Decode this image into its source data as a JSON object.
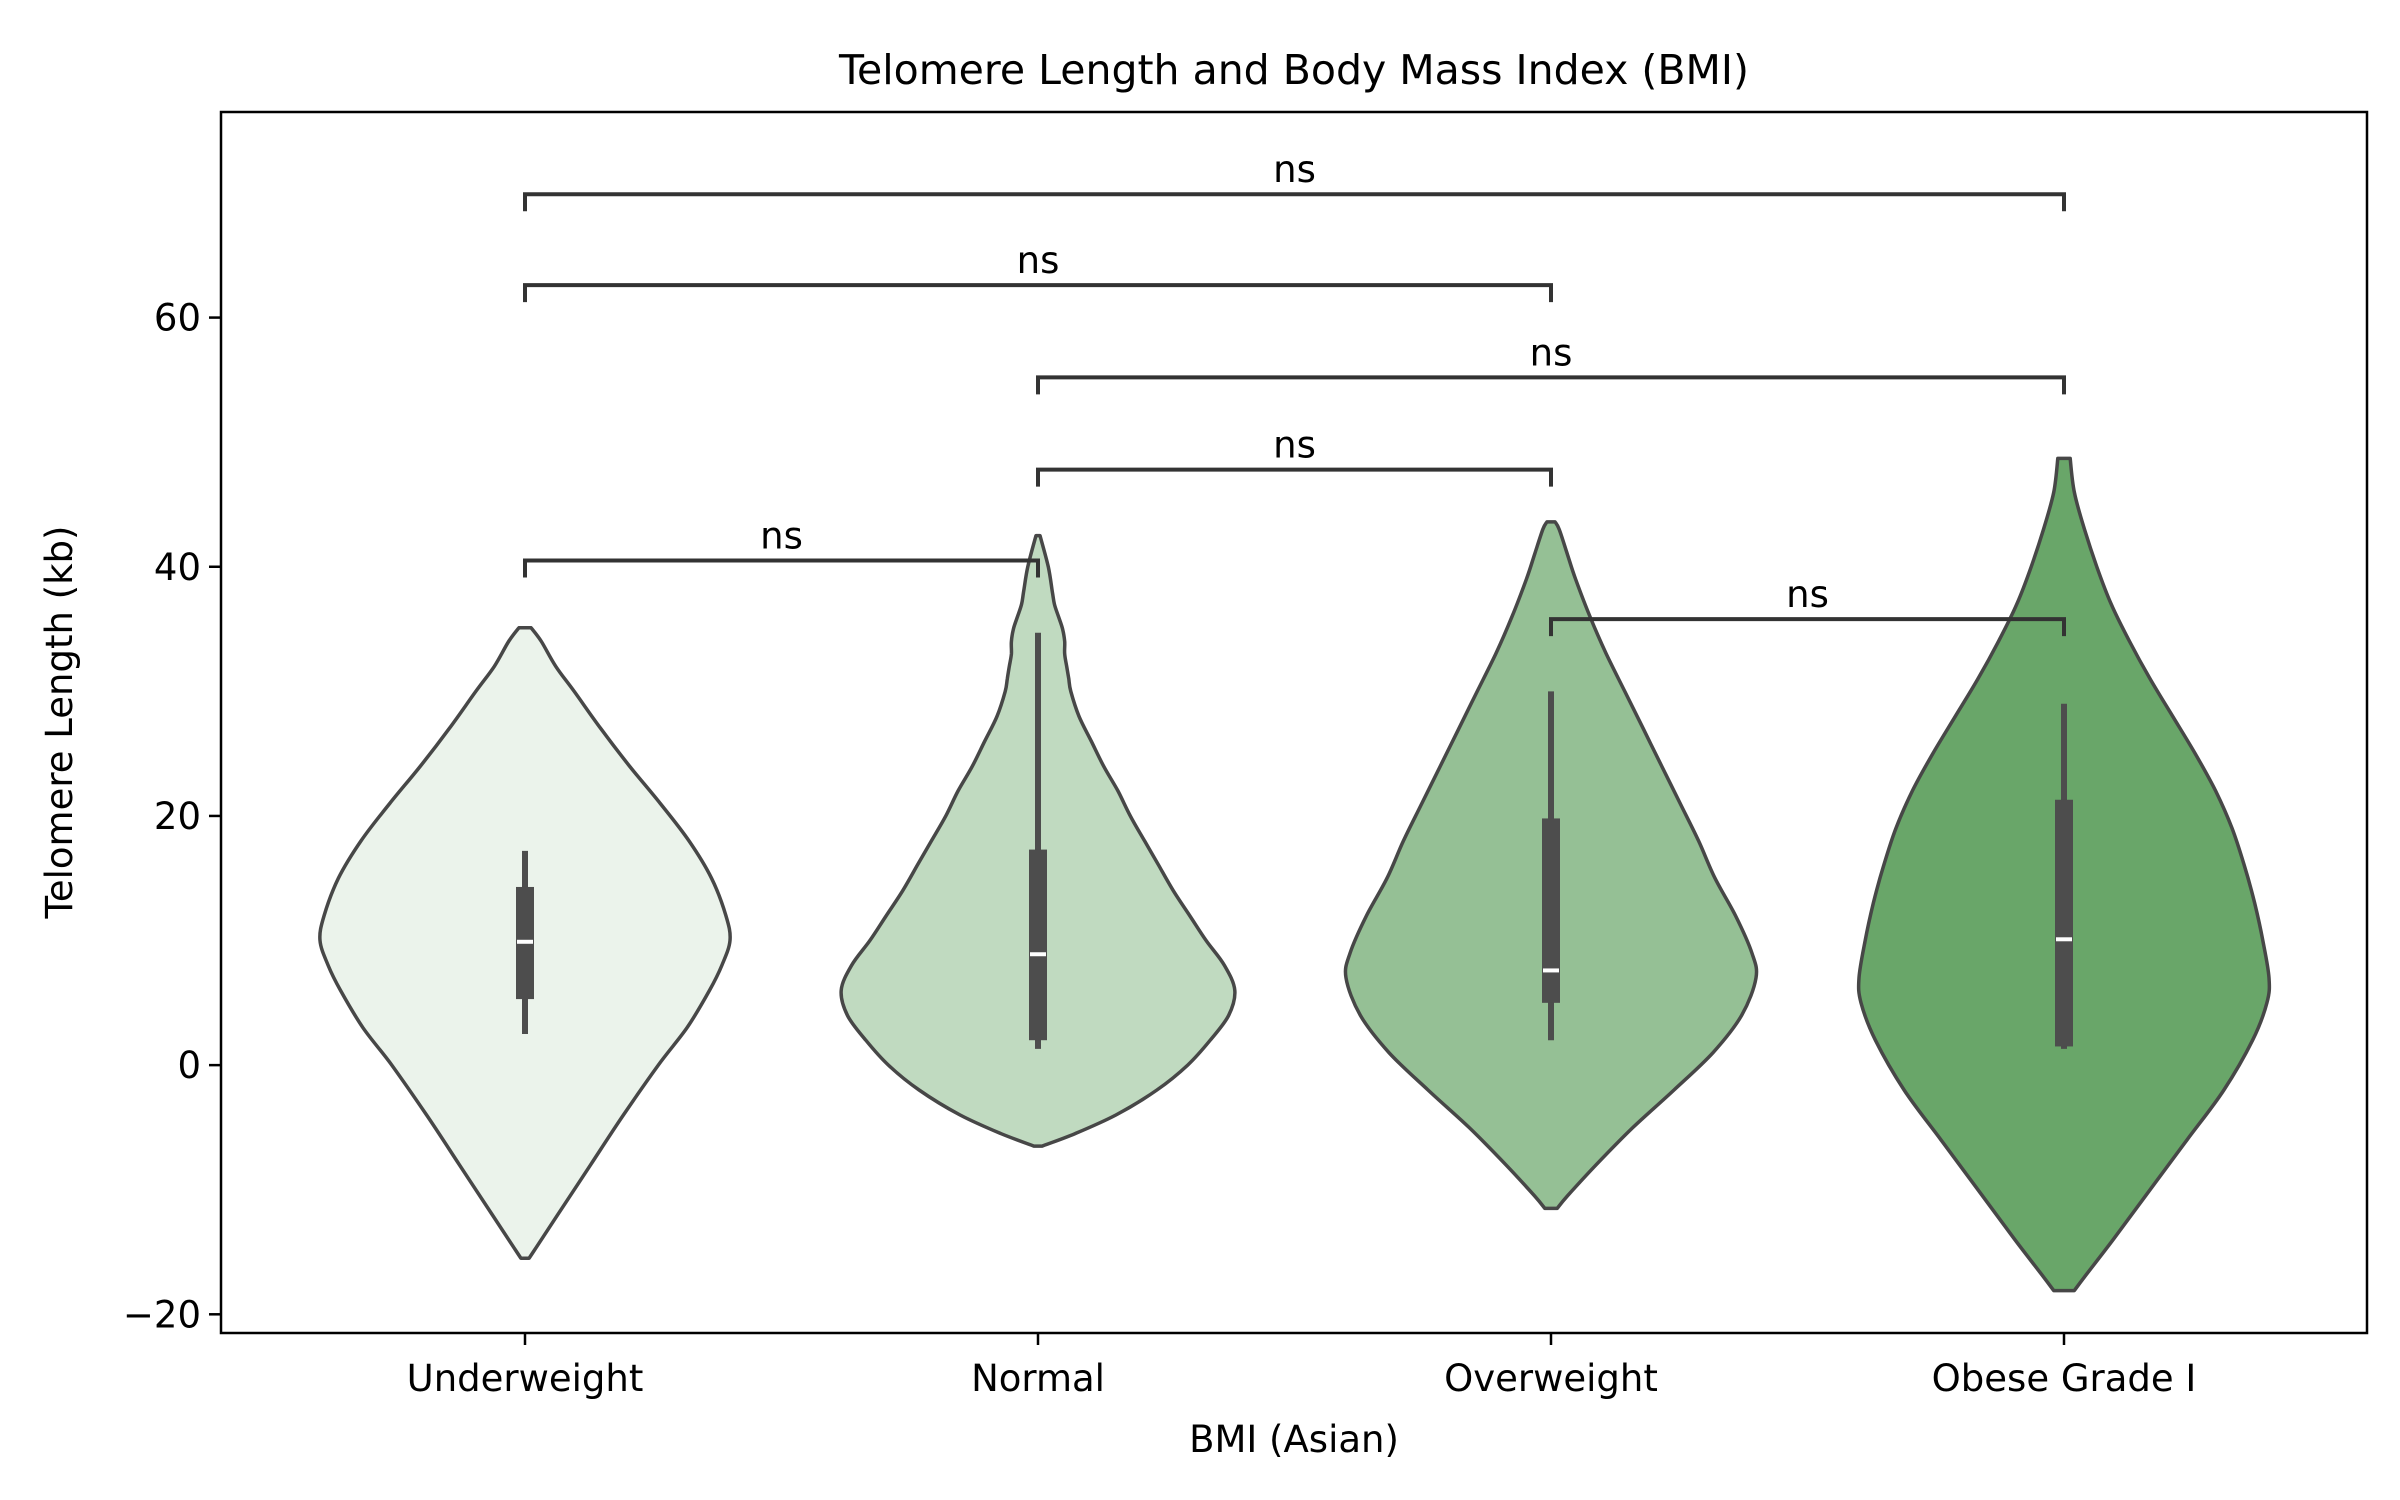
{
  "chart_data": {
    "type": "violin",
    "title": "Telomere Length and Body Mass Index (BMI)",
    "xlabel": "BMI (Asian)",
    "ylabel": "Telomere Length (kb)",
    "ylim": [
      -21.5,
      76.5
    ],
    "yticks": [
      -20,
      0,
      20,
      40,
      60
    ],
    "ytick_labels": [
      "−20",
      "0",
      "20",
      "40",
      "60"
    ],
    "categories": [
      "Underweight",
      "Normal",
      "Overweight",
      "Obese Grade I"
    ],
    "colors": [
      "#ebf3eb",
      "#c0dac0",
      "#95c095",
      "#69a669"
    ],
    "edge_color": "#474747",
    "box_color": "#4d4d4d",
    "median_color": "#ffffff",
    "violins": [
      {
        "category": "Underweight",
        "min": -15.5,
        "max": 35.1,
        "profile": [
          [
            -15.5,
            0.02
          ],
          [
            -14.5,
            0.06
          ],
          [
            -12,
            0.16
          ],
          [
            -8,
            0.32
          ],
          [
            -4,
            0.48
          ],
          [
            0,
            0.65
          ],
          [
            3,
            0.79
          ],
          [
            6,
            0.9
          ],
          [
            8,
            0.96
          ],
          [
            10,
            1.0
          ],
          [
            12,
            0.98
          ],
          [
            15,
            0.91
          ],
          [
            18,
            0.8
          ],
          [
            21,
            0.66
          ],
          [
            24,
            0.51
          ],
          [
            27,
            0.37
          ],
          [
            30,
            0.24
          ],
          [
            32,
            0.15
          ],
          [
            34,
            0.08
          ],
          [
            35.1,
            0.03
          ]
        ],
        "whisker": [
          2.5,
          17.2
        ],
        "q1": 5.3,
        "q3": 14.3,
        "median": 9.9
      },
      {
        "category": "Normal",
        "min": -6.5,
        "max": 42.5,
        "profile": [
          [
            -6.5,
            0.02
          ],
          [
            -5.5,
            0.18
          ],
          [
            -4,
            0.38
          ],
          [
            -2,
            0.58
          ],
          [
            0,
            0.73
          ],
          [
            2,
            0.84
          ],
          [
            4,
            0.93
          ],
          [
            6,
            0.96
          ],
          [
            8,
            0.91
          ],
          [
            10,
            0.82
          ],
          [
            12,
            0.74
          ],
          [
            14,
            0.66
          ],
          [
            16,
            0.59
          ],
          [
            18,
            0.52
          ],
          [
            20,
            0.45
          ],
          [
            22,
            0.39
          ],
          [
            24,
            0.32
          ],
          [
            26,
            0.26
          ],
          [
            28,
            0.2
          ],
          [
            30,
            0.16
          ],
          [
            31,
            0.15
          ],
          [
            32,
            0.14
          ],
          [
            33,
            0.13
          ],
          [
            34,
            0.13
          ],
          [
            35,
            0.12
          ],
          [
            36,
            0.1
          ],
          [
            37,
            0.08
          ],
          [
            38,
            0.07
          ],
          [
            40,
            0.05
          ],
          [
            42.5,
            0.01
          ]
        ],
        "whisker": [
          1.3,
          34.7
        ],
        "q1": 2.0,
        "q3": 17.3,
        "median": 8.9
      },
      {
        "category": "Overweight",
        "min": -11.5,
        "max": 43.6,
        "profile": [
          [
            -11.5,
            0.03
          ],
          [
            -10.5,
            0.08
          ],
          [
            -8,
            0.22
          ],
          [
            -5,
            0.4
          ],
          [
            -2,
            0.6
          ],
          [
            1,
            0.79
          ],
          [
            4,
            0.93
          ],
          [
            7,
            1.0
          ],
          [
            9,
            0.98
          ],
          [
            12,
            0.9
          ],
          [
            15,
            0.8
          ],
          [
            18,
            0.72
          ],
          [
            21,
            0.63
          ],
          [
            24,
            0.54
          ],
          [
            27,
            0.45
          ],
          [
            30,
            0.36
          ],
          [
            33,
            0.27
          ],
          [
            36,
            0.19
          ],
          [
            39,
            0.12
          ],
          [
            41,
            0.08
          ],
          [
            43,
            0.04
          ],
          [
            43.6,
            0.02
          ]
        ],
        "whisker": [
          2.0,
          30.0
        ],
        "q1": 5.0,
        "q3": 19.8,
        "median": 7.6
      },
      {
        "category": "Obese Grade I",
        "min": -18.1,
        "max": 48.7,
        "profile": [
          [
            -18.1,
            0.05
          ],
          [
            -17,
            0.1
          ],
          [
            -14,
            0.24
          ],
          [
            -10,
            0.42
          ],
          [
            -6,
            0.6
          ],
          [
            -2,
            0.78
          ],
          [
            2,
            0.92
          ],
          [
            5,
            0.99
          ],
          [
            7,
            1.0
          ],
          [
            10,
            0.97
          ],
          [
            13,
            0.93
          ],
          [
            16,
            0.88
          ],
          [
            19,
            0.82
          ],
          [
            22,
            0.74
          ],
          [
            25,
            0.64
          ],
          [
            28,
            0.53
          ],
          [
            31,
            0.42
          ],
          [
            34,
            0.32
          ],
          [
            37,
            0.23
          ],
          [
            40,
            0.16
          ],
          [
            43,
            0.1
          ],
          [
            46,
            0.05
          ],
          [
            48.7,
            0.03
          ]
        ],
        "whisker": [
          1.3,
          29.0
        ],
        "q1": 1.5,
        "q3": 21.3,
        "median": 10.1
      }
    ],
    "annotations": [
      {
        "from": 0,
        "to": 1,
        "y": 40.5,
        "label": "ns"
      },
      {
        "from": 1,
        "to": 2,
        "y": 47.8,
        "label": "ns"
      },
      {
        "from": 2,
        "to": 3,
        "y": 35.8,
        "label": "ns"
      },
      {
        "from": 1,
        "to": 3,
        "y": 55.2,
        "label": "ns"
      },
      {
        "from": 0,
        "to": 2,
        "y": 62.6,
        "label": "ns"
      },
      {
        "from": 0,
        "to": 3,
        "y": 69.9,
        "label": "ns"
      }
    ]
  }
}
